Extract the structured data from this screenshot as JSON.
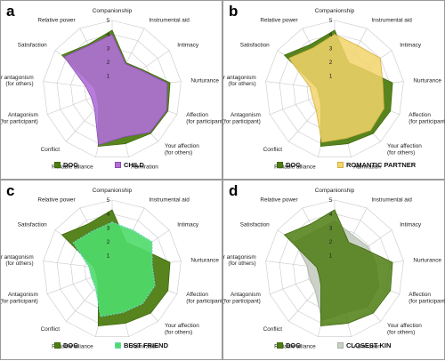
{
  "chart_data": [
    {
      "type": "radar",
      "panel": "a",
      "axes": [
        "Companionship",
        "Instrumental aid",
        "Intimacy",
        "Nurturance",
        "Affection (for participant)",
        "Your affection (for others)",
        "Admiration",
        "Reliable alliance",
        "Conflict",
        "Antagonism (for participant)",
        "Your antagonism (for others)",
        "Satisfaction",
        "Relative power"
      ],
      "ticks": [
        "1",
        "2",
        "3",
        "4",
        "5"
      ],
      "rmax": 5,
      "series": [
        {
          "name": "DOG",
          "values": [
            4.3,
            2.2,
            2.6,
            4.2,
            4.3,
            4.2,
            4.0,
            4.2,
            1.5,
            1.2,
            1.3,
            4.4,
            3.7
          ],
          "fill": "#4e7d12",
          "stroke": "#3f6a0c",
          "opacity": 0.95,
          "dash": false
        },
        {
          "name": "CHILD",
          "values": [
            4.0,
            2.1,
            2.5,
            4.0,
            4.2,
            4.1,
            3.5,
            4.1,
            1.9,
            1.6,
            1.9,
            4.2,
            3.6
          ],
          "fill": "#b06fd6",
          "stroke": "#8a4bb4",
          "opacity": 0.9,
          "dash": false
        }
      ]
    },
    {
      "type": "radar",
      "panel": "b",
      "axes": [
        "Companionship",
        "Instrumental aid",
        "Intimacy",
        "Nurturance",
        "Affection (for participant)",
        "Your affection (for others)",
        "Admiration",
        "Reliable alliance",
        "Conflict",
        "Antagonism (for participant)",
        "Your antagonism (for others)",
        "Satisfaction",
        "Relative power"
      ],
      "ticks": [
        "1",
        "2",
        "3",
        "4",
        "5"
      ],
      "rmax": 5,
      "series": [
        {
          "name": "DOG",
          "values": [
            4.3,
            2.2,
            2.6,
            4.2,
            4.3,
            4.2,
            4.0,
            4.2,
            1.5,
            1.2,
            1.3,
            4.4,
            3.7
          ],
          "fill": "#4e7d12",
          "stroke": "#3f6a0c",
          "opacity": 0.95,
          "dash": false
        },
        {
          "name": "ROMANTIC PARTNER",
          "values": [
            4.0,
            3.6,
            4.0,
            3.5,
            3.8,
            3.9,
            3.6,
            3.9,
            2.0,
            1.7,
            1.8,
            4.0,
            3.4
          ],
          "fill": "#f2d46a",
          "stroke": "#d4b040",
          "opacity": 0.85,
          "dash": false
        }
      ]
    },
    {
      "type": "radar",
      "panel": "c",
      "axes": [
        "Companionship",
        "Instrumental aid",
        "Intimacy",
        "Nurturance",
        "Affection (for participant)",
        "Your affection (for others)",
        "Admiration",
        "Reliable alliance",
        "Conflict",
        "Antagonism (for participant)",
        "Your antagonism (for others)",
        "Satisfaction",
        "Relative power"
      ],
      "ticks": [
        "1",
        "2",
        "3",
        "4",
        "5"
      ],
      "rmax": 5,
      "series": [
        {
          "name": "DOG",
          "values": [
            4.3,
            2.2,
            2.6,
            4.2,
            4.3,
            4.2,
            4.0,
            4.2,
            1.5,
            1.2,
            1.3,
            4.4,
            3.7
          ],
          "fill": "#4e7d12",
          "stroke": "#3f6a0c",
          "opacity": 0.95,
          "dash": false
        },
        {
          "name": "BEST FRIEND",
          "values": [
            3.4,
            3.2,
            3.5,
            2.9,
            3.3,
            3.3,
            3.2,
            3.5,
            1.8,
            1.6,
            1.7,
            3.4,
            3.1
          ],
          "fill": "#4fdc6a",
          "stroke": "#6fd3c8",
          "opacity": 0.9,
          "dash": true
        }
      ]
    },
    {
      "type": "radar",
      "panel": "d",
      "axes": [
        "Companionship",
        "Instrumental aid",
        "Intimacy",
        "Nurturance",
        "Affection (for participant)",
        "Your affection (for others)",
        "Admiration",
        "Reliable alliance",
        "Conflict",
        "Antagonism (for participant)",
        "Your antagonism (for others)",
        "Satisfaction",
        "Relative power"
      ],
      "ticks": [
        "1",
        "2",
        "3",
        "4",
        "5"
      ],
      "rmax": 5,
      "series": [
        {
          "name": "CLOSEST KIN",
          "values": [
            3.5,
            2.8,
            2.9,
            3.0,
            3.4,
            3.6,
            3.2,
            3.8,
            2.1,
            1.9,
            2.0,
            3.5,
            3.1
          ],
          "fill": "#c8cfc4",
          "stroke": "#aab4a6",
          "opacity": 0.95,
          "dash": false
        },
        {
          "name": "DOG",
          "values": [
            4.3,
            2.2,
            2.6,
            4.2,
            4.3,
            4.2,
            4.0,
            4.2,
            1.5,
            1.2,
            1.3,
            4.4,
            3.7
          ],
          "fill": "#4e7d12",
          "stroke": "#3f6a0c",
          "opacity": 0.85,
          "dash": false
        }
      ],
      "legend_order": [
        "DOG",
        "CLOSEST KIN"
      ]
    }
  ]
}
